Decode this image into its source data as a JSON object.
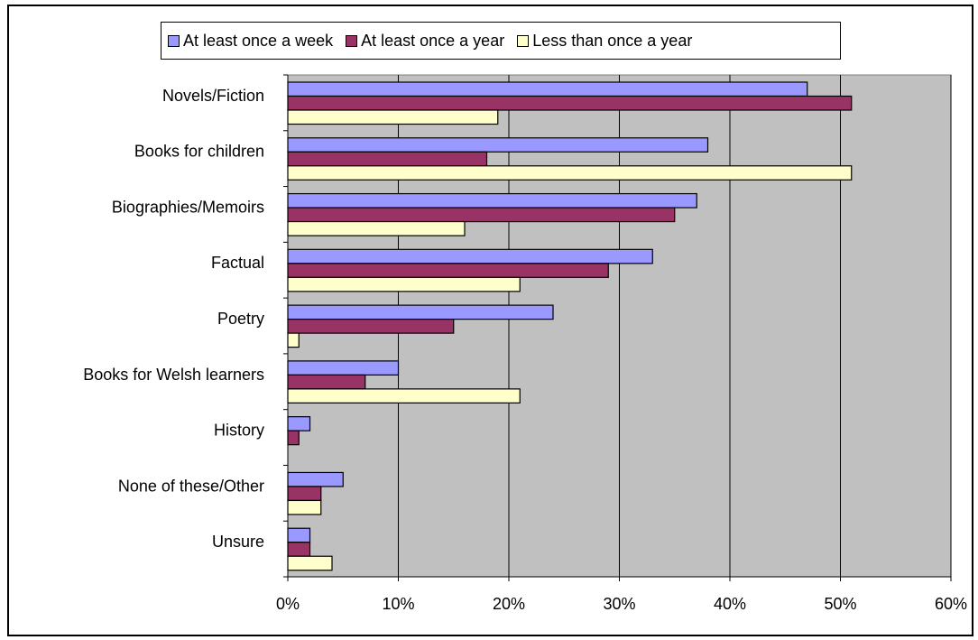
{
  "chart_data": {
    "type": "bar",
    "orientation": "horizontal",
    "categories": [
      "Novels/Fiction",
      "Books for children",
      "Biographies/Memoirs",
      "Factual",
      "Poetry",
      "Books for Welsh learners",
      "History",
      "None of these/Other",
      "Unsure"
    ],
    "series": [
      {
        "name": "At least once a week",
        "color": "#9999ff",
        "values": [
          47,
          38,
          37,
          33,
          24,
          10,
          2,
          5,
          2
        ]
      },
      {
        "name": "At least once a year",
        "color": "#993366",
        "values": [
          51,
          18,
          35,
          29,
          15,
          7,
          1,
          3,
          2
        ]
      },
      {
        "name": "Less than once a year",
        "color": "#ffffcc",
        "values": [
          19,
          51,
          16,
          21,
          1,
          21,
          0,
          3,
          4
        ]
      }
    ],
    "xlim": [
      0,
      60
    ],
    "xticks": [
      "0%",
      "10%",
      "20%",
      "30%",
      "40%",
      "50%",
      "60%"
    ],
    "plot_background": "#c0c0c0",
    "grid": true,
    "legend_position": "top"
  }
}
